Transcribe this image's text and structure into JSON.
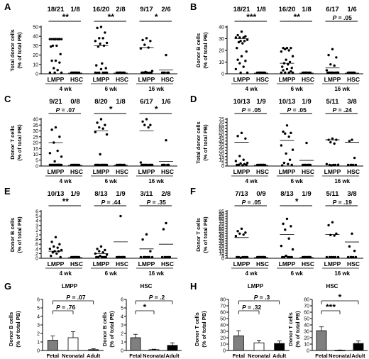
{
  "chart_data": [
    {
      "panel": "A",
      "type": "scatter",
      "ylabel": [
        "Total donor cells",
        "(% of total PB)"
      ],
      "yticks": [
        0,
        10,
        20,
        30,
        40,
        50
      ],
      "ylim": [
        0,
        50
      ],
      "groups": [
        {
          "week": "4 wk",
          "counts": [
            "18/21",
            "1/8"
          ],
          "sig": "**",
          "sig_italic_P": false,
          "lmpp": [
            37,
            37,
            37,
            37,
            37,
            37,
            37,
            37,
            37,
            30,
            30,
            29,
            21,
            14,
            14,
            12,
            6,
            4,
            0,
            0,
            0
          ],
          "lmpp_mean": 37,
          "hsc": [
            0,
            0,
            0,
            0,
            0,
            0,
            0,
            0
          ],
          "hsc_mean": 0
        },
        {
          "week": "6 wk",
          "counts": [
            "16/20",
            "2/8"
          ],
          "sig": "**",
          "lmpp": [
            51,
            49,
            44,
            38,
            38,
            35,
            33,
            32,
            30,
            29,
            11,
            9,
            6,
            5,
            1,
            0,
            0,
            0,
            0,
            0
          ],
          "lmpp_mean": 30,
          "hsc": [
            0,
            0,
            0,
            0,
            0,
            0,
            0,
            0
          ],
          "hsc_mean": 0
        },
        {
          "week": "16 wk",
          "counts": [
            "9/17",
            "2/6"
          ],
          "sig": "*",
          "lmpp": [
            38,
            36,
            35,
            31,
            28,
            27,
            3,
            2,
            1,
            0,
            0,
            0,
            0,
            0,
            0,
            0,
            0
          ],
          "lmpp_mean": 28,
          "hsc": [
            20,
            0,
            0,
            0,
            0,
            0
          ],
          "hsc_mean": 4
        }
      ],
      "xlabels": [
        "LMPP",
        "HSC"
      ]
    },
    {
      "panel": "B",
      "type": "scatter",
      "ylabel": [
        "Donor B cells",
        "(% of total PB)"
      ],
      "yticks": [
        0,
        10,
        20,
        30,
        40
      ],
      "ylim": [
        0,
        40
      ],
      "groups": [
        {
          "week": "4 wk",
          "counts": [
            "18/21",
            "1/8"
          ],
          "sig": "***",
          "lmpp": [
            36,
            33,
            32,
            31,
            31,
            31,
            29,
            28,
            28,
            27,
            26,
            22,
            19,
            15,
            12,
            11,
            9,
            6,
            4,
            0,
            0
          ],
          "lmpp_mean": 30,
          "hsc": [
            0,
            0,
            0,
            0,
            0,
            0,
            0,
            0
          ],
          "hsc_mean": 0
        },
        {
          "week": "6 wk",
          "counts": [
            "16/20",
            "1/8"
          ],
          "sig": "**",
          "lmpp": [
            22,
            22,
            22,
            21,
            20,
            19,
            15,
            12,
            10,
            9,
            8,
            6,
            5,
            4,
            3,
            2,
            1,
            0,
            0,
            0
          ],
          "lmpp_mean": 9,
          "hsc": [
            0,
            0,
            0,
            0,
            0,
            0,
            0,
            0
          ],
          "hsc_mean": 0
        },
        {
          "week": "16 wk",
          "counts": [
            "6/17",
            "1/6"
          ],
          "sig": "P = .05",
          "lmpp": [
            21,
            16,
            14,
            8,
            7,
            3,
            1,
            0,
            0,
            0,
            0,
            0,
            0,
            0,
            0,
            0,
            0
          ],
          "lmpp_mean": 5,
          "hsc": [
            0,
            0,
            0,
            0,
            0,
            0
          ],
          "hsc_mean": 0
        }
      ],
      "xlabels": [
        "LMPP",
        "HSC"
      ]
    },
    {
      "panel": "C",
      "type": "scatter",
      "ylabel": [
        "Donor T cells",
        "(% of total PB)"
      ],
      "yticks": [
        0,
        5,
        10,
        15,
        20,
        25,
        30,
        35,
        40
      ],
      "ylim": [
        0,
        40
      ],
      "groups": [
        {
          "week": "4 wk",
          "counts": [
            "9/21",
            "0/8"
          ],
          "sig": "P = .07",
          "lmpp": [
            33,
            31,
            25,
            20,
            13,
            11,
            8,
            4,
            1,
            0,
            0,
            0,
            0,
            0,
            0,
            0,
            0,
            0,
            0,
            0,
            0
          ],
          "lmpp_mean": 20,
          "hsc": [
            0,
            0,
            0,
            0,
            0,
            0,
            0,
            0
          ],
          "hsc_mean": 0
        },
        {
          "week": "6 wk",
          "counts": [
            "8/20",
            "1/8"
          ],
          "sig": "*",
          "lmpp": [
            40,
            37,
            35,
            33,
            32,
            29,
            27,
            10,
            0,
            0,
            0,
            0,
            0,
            0,
            0,
            0,
            0,
            0,
            0,
            0
          ],
          "lmpp_mean": 30,
          "hsc": [
            0,
            0,
            0,
            0,
            0,
            0,
            0,
            0
          ],
          "hsc_mean": 0
        },
        {
          "week": "16 wk",
          "counts": [
            "6/17",
            "1/6"
          ],
          "sig": "*",
          "lmpp": [
            40,
            38,
            35,
            35,
            33,
            3,
            0,
            0,
            0,
            0,
            0,
            0,
            0,
            0,
            0,
            0,
            0
          ],
          "lmpp_mean": 30,
          "hsc": [
            22,
            0,
            0,
            0,
            0,
            0
          ],
          "hsc_mean": 4
        }
      ],
      "xlabels": [
        "LMPP",
        "HSC"
      ]
    },
    {
      "panel": "D",
      "type": "scatter",
      "ylabel": [
        "Total donor cells",
        "(% of total PB)"
      ],
      "yticks": [
        0,
        5,
        10,
        15,
        20,
        25,
        30,
        35,
        40,
        45,
        50,
        55,
        60,
        65,
        70,
        75
      ],
      "ylim": [
        0,
        75
      ],
      "groups": [
        {
          "week": "4 wk",
          "counts": [
            "10/13",
            "1/9"
          ],
          "sig": "P = .05",
          "lmpp": [
            53,
            48,
            44,
            16,
            10,
            8,
            5,
            4,
            3,
            2,
            1,
            0,
            0
          ],
          "lmpp_mean": 38,
          "hsc": [
            0,
            0,
            0,
            0,
            0,
            0,
            0,
            0,
            0
          ],
          "hsc_mean": 0
        },
        {
          "week": "6 wk",
          "counts": [
            "10/13",
            "1/9"
          ],
          "sig": "P = .05",
          "lmpp": [
            65,
            55,
            53,
            52,
            47,
            33,
            26,
            20,
            10,
            5,
            3,
            1,
            0
          ],
          "lmpp_mean": 41,
          "hsc": [
            37,
            0,
            0,
            0,
            0,
            0,
            0,
            0,
            0
          ],
          "hsc_mean": 9
        },
        {
          "week": "16 wk",
          "counts": [
            "5/11",
            "3/8"
          ],
          "sig": "P = .24",
          "lmpp": [
            44,
            42,
            42,
            38,
            36,
            3,
            2,
            1,
            0,
            0,
            0
          ],
          "lmpp_mean": 42,
          "hsc": [
            42,
            40,
            13,
            0,
            0,
            0,
            0,
            0
          ],
          "hsc_mean": 38
        }
      ],
      "xlabels": [
        "LMPP",
        "HSC"
      ]
    },
    {
      "panel": "E",
      "type": "scatter",
      "ylabel": [
        "Donor B cells",
        "(% of total PB)"
      ],
      "yticks": [
        0,
        0.2,
        0.4,
        0.6,
        0.8,
        1,
        2,
        3,
        4,
        5,
        6
      ],
      "ylim": [
        0,
        6
      ],
      "groups": [
        {
          "week": "4 wk",
          "counts": [
            "10/13",
            "1/9"
          ],
          "sig": "**",
          "lmpp": [
            0.9,
            0.7,
            0.6,
            0.5,
            0.45,
            0.4,
            0.35,
            0.3,
            0.3,
            0.25,
            0.2,
            0.1,
            0
          ],
          "lmpp_mean": 0.3,
          "hsc": [
            0,
            0,
            0,
            0,
            0,
            0,
            0,
            0,
            0
          ],
          "hsc_mean": 0
        },
        {
          "week": "6 wk",
          "counts": [
            "8/13",
            "1/9"
          ],
          "sig": "P = .44",
          "lmpp": [
            0.5,
            0.4,
            0.35,
            0.3,
            0.25,
            0.2,
            0.15,
            0.1,
            0.05,
            0,
            0,
            0,
            0
          ],
          "lmpp_mean": 0.2,
          "hsc": [
            5,
            0,
            0,
            0,
            0,
            0,
            0,
            0,
            0
          ],
          "hsc_mean": 0.7
        },
        {
          "week": "16 wk",
          "counts": [
            "3/11",
            "2/8"
          ],
          "sig": "P = .35",
          "lmpp": [
            1.1,
            0.8,
            0.3,
            0,
            0,
            0,
            0,
            0,
            0,
            0,
            0
          ],
          "lmpp_mean": 0.4,
          "hsc": [
            3.5,
            2.2,
            0,
            0,
            0,
            0,
            0,
            0
          ],
          "hsc_mean": 0.6
        }
      ],
      "xlabels": [
        "LMPP",
        "HSC"
      ]
    },
    {
      "panel": "F",
      "type": "scatter",
      "ylabel": [
        "Donor T cells",
        "(% of total PB)"
      ],
      "yticks": [
        0,
        5,
        10,
        15,
        20,
        25,
        30,
        35,
        40,
        45,
        50,
        55,
        60,
        65,
        70,
        75,
        80,
        85,
        90,
        95
      ],
      "ylim": [
        0,
        95
      ],
      "groups": [
        {
          "week": "4 wk",
          "counts": [
            "7/13",
            "0/9"
          ],
          "sig": "P = .05",
          "lmpp": [
            60,
            55,
            52,
            50,
            48,
            45,
            2,
            1,
            0,
            0,
            0,
            0,
            0
          ],
          "lmpp_mean": 42,
          "hsc": [
            0,
            0,
            0,
            0,
            0,
            0,
            0,
            0,
            0
          ],
          "hsc_mean": 0
        },
        {
          "week": "6 wk",
          "counts": [
            "8/13",
            "1/9"
          ],
          "sig": "*",
          "lmpp": [
            80,
            70,
            65,
            58,
            40,
            25,
            18,
            5,
            0,
            0,
            0,
            0,
            0
          ],
          "lmpp_mean": 48,
          "hsc": [
            2,
            0,
            0,
            0,
            0,
            0,
            0,
            0,
            0
          ],
          "hsc_mean": 0
        },
        {
          "week": "16 wk",
          "counts": [
            "5/11",
            "3/8"
          ],
          "sig": "P = .19",
          "lmpp": [
            73,
            67,
            50,
            47,
            46,
            0,
            0,
            0,
            0,
            0,
            0
          ],
          "lmpp_mean": 48,
          "hsc": [
            50,
            24,
            15,
            0,
            0,
            0,
            0,
            0
          ],
          "hsc_mean": 33
        }
      ],
      "xlabels": [
        "LMPP",
        "HSC"
      ]
    },
    {
      "panel": "G",
      "type": "bar",
      "ylabel": [
        "Donor B cells",
        "(% of total PB)"
      ],
      "subplots": [
        {
          "title": "LMPP",
          "yticks": [
            0,
            1,
            2,
            3,
            4,
            5,
            6
          ],
          "ylim": [
            0,
            6
          ],
          "categories": [
            "Fetal",
            "Neonatal",
            "Adult"
          ],
          "values": [
            1.2,
            1.5,
            0.1
          ],
          "errors": [
            0.5,
            0.7,
            0.1
          ],
          "fills": [
            "#7f7f7f",
            "#ffffff",
            "#000000"
          ],
          "pvals": [
            {
              "from": 0,
              "to": 1,
              "text": "P = .76"
            },
            {
              "from": 0,
              "to": 2,
              "text": "P = .07"
            }
          ]
        },
        {
          "title": "HSC",
          "yticks": [
            0,
            1,
            2,
            3,
            4,
            5,
            6
          ],
          "ylim": [
            0,
            6
          ],
          "categories": [
            "Fetal",
            "Neonatal",
            "Adult"
          ],
          "values": [
            1.5,
            0.1,
            0.6
          ],
          "errors": [
            0.4,
            0.05,
            0.3
          ],
          "fills": [
            "#7f7f7f",
            "#ffffff",
            "#000000"
          ],
          "pvals": [
            {
              "from": 0,
              "to": 1,
              "text": "*"
            },
            {
              "from": 0,
              "to": 2,
              "text": "P = .2"
            }
          ]
        }
      ]
    },
    {
      "panel": "H",
      "type": "bar",
      "ylabel": [
        "Donor T cells",
        "(% of total PB)"
      ],
      "subplots": [
        {
          "title": "LMPP",
          "yticks": [
            0,
            10,
            20,
            30,
            40,
            50,
            60,
            70,
            80
          ],
          "ylim": [
            0,
            80
          ],
          "categories": [
            "Fetal",
            "Neonatal",
            "Adult"
          ],
          "values": [
            23,
            12,
            11
          ],
          "errors": [
            8,
            4,
            4
          ],
          "fills": [
            "#7f7f7f",
            "#ffffff",
            "#000000"
          ],
          "pvals": [
            {
              "from": 0,
              "to": 1,
              "text": "P = .32"
            },
            {
              "from": 0,
              "to": 2,
              "text": "P = .3"
            }
          ]
        },
        {
          "title": "HSC",
          "yticks": [
            0,
            10,
            20,
            30,
            40,
            50,
            60,
            70,
            80
          ],
          "ylim": [
            0,
            80
          ],
          "categories": [
            "Fetal",
            "Neonatal",
            "Adult"
          ],
          "values": [
            31,
            0.5,
            11
          ],
          "errors": [
            6,
            0.3,
            4
          ],
          "fills": [
            "#7f7f7f",
            "#ffffff",
            "#000000"
          ],
          "pvals": [
            {
              "from": 0,
              "to": 1,
              "text": "***"
            },
            {
              "from": 0,
              "to": 2,
              "text": "*"
            }
          ]
        }
      ]
    }
  ]
}
